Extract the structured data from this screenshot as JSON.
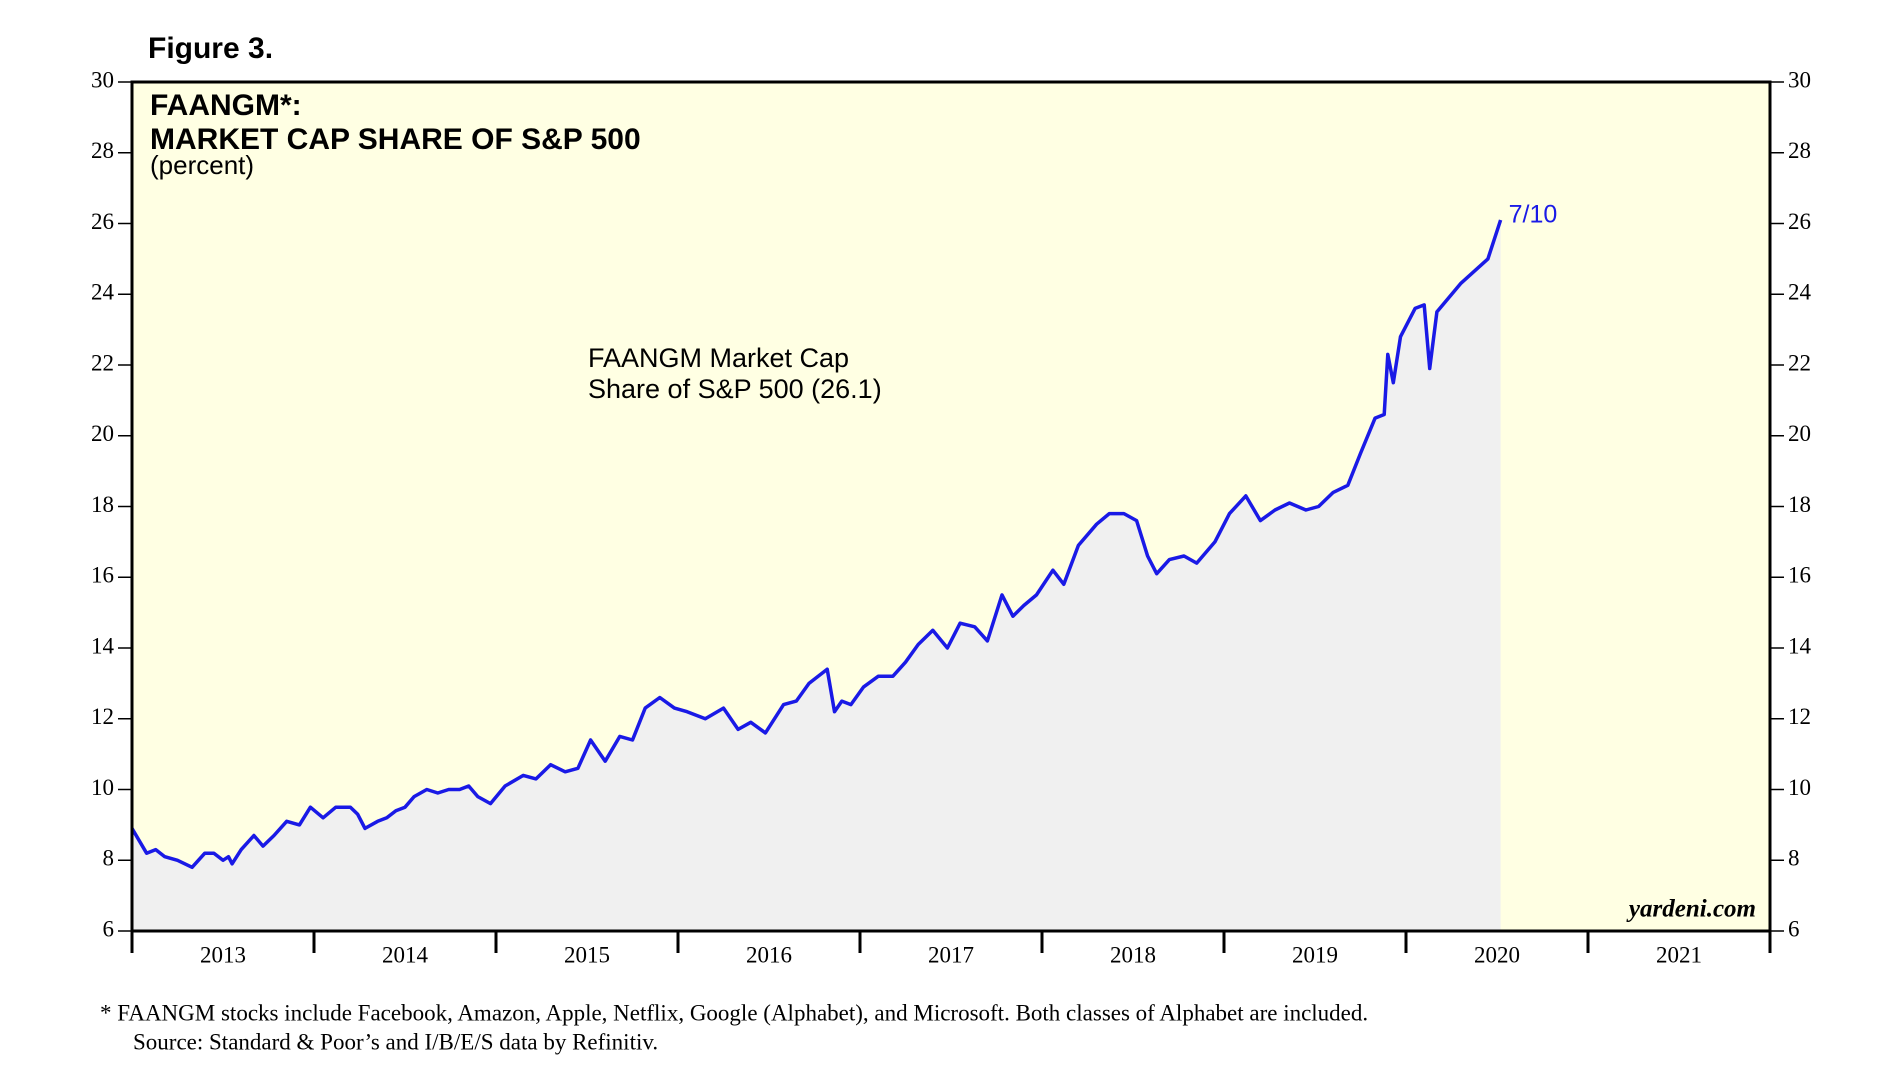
{
  "chart_data": {
    "type": "area-line",
    "figure_label": "Figure 3.",
    "title_lines": [
      "FAANGM*:",
      "MARKET CAP SHARE OF S&P 500"
    ],
    "subtitle": "(percent)",
    "annotation_lines": [
      "FAANGM Market Cap",
      "Share of S&P 500 (26.1)"
    ],
    "end_label": "7/10",
    "watermark": "yardeni.com",
    "footnotes": [
      "*  FAANGM stocks include Facebook, Amazon, Apple, Netflix, Google (Alphabet), and Microsoft. Both classes of Alphabet are included.",
      "Source: Standard & Poor’s and I/B/E/S data by Refinitiv."
    ],
    "color": "#1a1ae6",
    "x": [
      2013.0,
      2013.08,
      2013.13,
      2013.18,
      2013.25,
      2013.33,
      2013.4,
      2013.45,
      2013.5,
      2013.53,
      2013.55,
      2013.6,
      2013.67,
      2013.72,
      2013.78,
      2013.85,
      2013.92,
      2013.98,
      2014.05,
      2014.12,
      2014.2,
      2014.24,
      2014.28,
      2014.35,
      2014.4,
      2014.45,
      2014.5,
      2014.55,
      2014.62,
      2014.68,
      2014.74,
      2014.8,
      2014.85,
      2014.9,
      2014.97,
      2015.05,
      2015.15,
      2015.22,
      2015.3,
      2015.38,
      2015.45,
      2015.52,
      2015.6,
      2015.68,
      2015.75,
      2015.82,
      2015.9,
      2015.98,
      2016.05,
      2016.15,
      2016.25,
      2016.33,
      2016.4,
      2016.48,
      2016.58,
      2016.65,
      2016.72,
      2016.82,
      2016.86,
      2016.9,
      2016.95,
      2017.02,
      2017.1,
      2017.18,
      2017.25,
      2017.32,
      2017.4,
      2017.48,
      2017.55,
      2017.63,
      2017.7,
      2017.78,
      2017.84,
      2017.9,
      2017.97,
      2018.06,
      2018.12,
      2018.2,
      2018.3,
      2018.37,
      2018.45,
      2018.52,
      2018.58,
      2018.63,
      2018.7,
      2018.78,
      2018.85,
      2018.95,
      2019.03,
      2019.12,
      2019.2,
      2019.28,
      2019.36,
      2019.45,
      2019.52,
      2019.6,
      2019.68,
      2019.75,
      2019.83,
      2019.88,
      2019.9,
      2019.93,
      2019.97,
      2020.05,
      2020.1,
      2020.13,
      2020.17,
      2020.3,
      2020.45,
      2020.52
    ],
    "values": [
      8.9,
      8.2,
      8.3,
      8.1,
      8.0,
      7.8,
      8.2,
      8.2,
      8.0,
      8.1,
      7.9,
      8.3,
      8.7,
      8.4,
      8.7,
      9.1,
      9.0,
      9.5,
      9.2,
      9.5,
      9.5,
      9.3,
      8.9,
      9.1,
      9.2,
      9.4,
      9.5,
      9.8,
      10.0,
      9.9,
      10.0,
      10.0,
      10.1,
      9.8,
      9.6,
      10.1,
      10.4,
      10.3,
      10.7,
      10.5,
      10.6,
      11.4,
      10.8,
      11.5,
      11.4,
      12.3,
      12.6,
      12.3,
      12.2,
      12.0,
      12.3,
      11.7,
      11.9,
      11.6,
      12.4,
      12.5,
      13.0,
      13.4,
      12.2,
      12.5,
      12.4,
      12.9,
      13.2,
      13.2,
      13.6,
      14.1,
      14.5,
      14.0,
      14.7,
      14.6,
      14.2,
      15.5,
      14.9,
      15.2,
      15.5,
      16.2,
      15.8,
      16.9,
      17.5,
      17.8,
      17.8,
      17.6,
      16.6,
      16.1,
      16.5,
      16.6,
      16.4,
      17.0,
      17.8,
      18.3,
      17.6,
      17.9,
      18.1,
      17.9,
      18.0,
      18.4,
      18.6,
      19.5,
      20.5,
      20.6,
      22.3,
      21.5,
      22.8,
      23.6,
      23.7,
      21.9,
      23.5,
      24.3,
      25.0,
      26.1
    ],
    "xlim": [
      2013,
      2022
    ],
    "xticks": [
      2013,
      2014,
      2015,
      2016,
      2017,
      2018,
      2019,
      2020,
      2021,
      2022
    ],
    "year_labels": [
      "2013",
      "2014",
      "2015",
      "2016",
      "2017",
      "2018",
      "2019",
      "2020",
      "2021"
    ],
    "ylim": [
      6,
      30
    ],
    "yticks": [
      6,
      8,
      10,
      12,
      14,
      16,
      18,
      20,
      22,
      24,
      26,
      28,
      30
    ]
  }
}
